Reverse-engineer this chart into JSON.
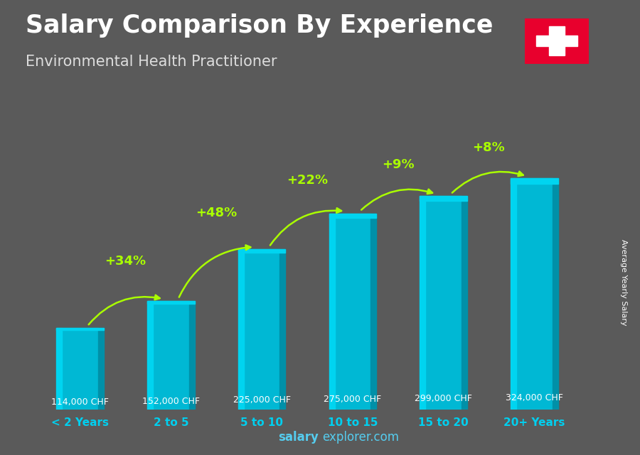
{
  "title": "Salary Comparison By Experience",
  "subtitle": "Environmental Health Practitioner",
  "categories": [
    "< 2 Years",
    "2 to 5",
    "5 to 10",
    "10 to 15",
    "15 to 20",
    "20+ Years"
  ],
  "values": [
    114000,
    152000,
    225000,
    275000,
    299000,
    324000
  ],
  "labels": [
    "114,000 CHF",
    "152,000 CHF",
    "225,000 CHF",
    "275,000 CHF",
    "299,000 CHF",
    "324,000 CHF"
  ],
  "pct_changes": [
    "+34%",
    "+48%",
    "+22%",
    "+9%",
    "+8%"
  ],
  "bar_color_top": "#00d4f0",
  "bar_color_mid": "#00b8d4",
  "bar_color_bottom": "#0090a8",
  "bg_color": "#5a5a5a",
  "title_color": "#ffffff",
  "subtitle_color": "#dddddd",
  "label_color": "#ffffff",
  "pct_color": "#aaff00",
  "axis_label_color": "#00cfef",
  "ylabel": "Average Yearly Salary",
  "watermark_bold": "salary",
  "watermark_rest": "explorer.com",
  "flag_bg": "#e8002d",
  "flag_cross": "#ffffff",
  "max_val": 370000
}
